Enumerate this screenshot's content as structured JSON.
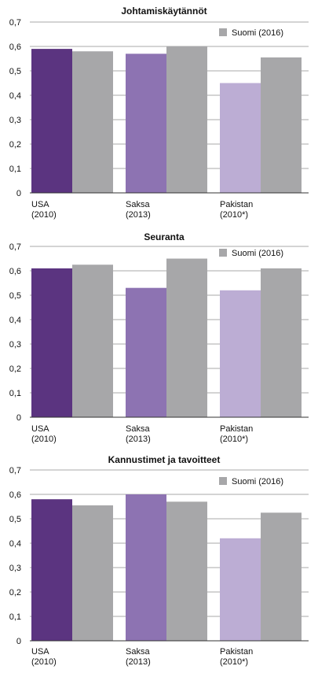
{
  "colors": {
    "usa": "#5b3480",
    "saksa": "#8d73b2",
    "pakistan": "#bcadd4",
    "suomi": "#a7a7a9",
    "grid": "#aaaaaa",
    "axis": "#333333"
  },
  "chart_data": [
    {
      "type": "bar",
      "title": "Johtamiskäytännöt",
      "categories": [
        [
          "USA",
          "(2010)"
        ],
        [
          "Saksa",
          "(2013)"
        ],
        [
          "Pakistan",
          "(2010*)"
        ]
      ],
      "series": [
        {
          "values": [
            0.59,
            0.57,
            0.45
          ]
        },
        {
          "name": "Suomi (2016)",
          "values": [
            0.58,
            0.6,
            0.555
          ]
        }
      ],
      "ylim": [
        0,
        0.7
      ],
      "yticks": [
        "0",
        "0,1",
        "0,2",
        "0,3",
        "0,4",
        "0,5",
        "0,6",
        "0,7"
      ],
      "grid": true,
      "legend": "top-right"
    },
    {
      "type": "bar",
      "title": "Seuranta",
      "categories": [
        [
          "USA",
          "(2010)"
        ],
        [
          "Saksa",
          "(2013)"
        ],
        [
          "Pakistan",
          "(2010*)"
        ]
      ],
      "series": [
        {
          "values": [
            0.61,
            0.53,
            0.52
          ]
        },
        {
          "name": "Suomi (2016)",
          "values": [
            0.625,
            0.65,
            0.61
          ]
        }
      ],
      "ylim": [
        0,
        0.7
      ],
      "yticks": [
        "0",
        "0,1",
        "0,2",
        "0,3",
        "0,4",
        "0,5",
        "0,6",
        "0,7"
      ],
      "grid": true,
      "legend": "top-right"
    },
    {
      "type": "bar",
      "title": "Kannustimet ja tavoitteet",
      "categories": [
        [
          "USA",
          "(2010)"
        ],
        [
          "Saksa",
          "(2013)"
        ],
        [
          "Pakistan",
          "(2010*)"
        ]
      ],
      "series": [
        {
          "values": [
            0.58,
            0.6,
            0.42
          ]
        },
        {
          "name": "Suomi (2016)",
          "values": [
            0.555,
            0.57,
            0.525
          ]
        }
      ],
      "ylim": [
        0,
        0.7
      ],
      "yticks": [
        "0",
        "0,1",
        "0,2",
        "0,3",
        "0,4",
        "0,5",
        "0,6",
        "0,7"
      ],
      "grid": true,
      "legend": "top-right"
    }
  ]
}
